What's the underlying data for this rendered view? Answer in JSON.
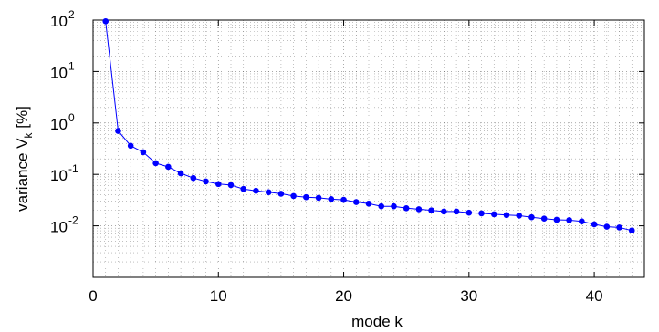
{
  "chart_data": {
    "type": "line",
    "title": "",
    "xlabel": "mode k",
    "ylabel_main": "variance V",
    "ylabel_sub": "k",
    "ylabel_unit": " [%]",
    "xlim": [
      0,
      44
    ],
    "ylim": [
      0.001,
      100
    ],
    "y_scale": "log",
    "grid": true,
    "legend": "none",
    "series_color": "#0000ff",
    "x_ticks": [
      {
        "value": 0,
        "label": "0"
      },
      {
        "value": 10,
        "label": "10"
      },
      {
        "value": 20,
        "label": "20"
      },
      {
        "value": 30,
        "label": "30"
      },
      {
        "value": 40,
        "label": "40"
      }
    ],
    "y_ticks": [
      {
        "value": 100,
        "base": "10",
        "exp": "2"
      },
      {
        "value": 10,
        "base": "10",
        "exp": "1"
      },
      {
        "value": 1,
        "base": "10",
        "exp": "0"
      },
      {
        "value": 0.1,
        "base": "10",
        "exp": "-1"
      },
      {
        "value": 0.01,
        "base": "10",
        "exp": "-2"
      }
    ],
    "x": [
      1,
      2,
      3,
      4,
      5,
      6,
      7,
      8,
      9,
      10,
      11,
      12,
      13,
      14,
      15,
      16,
      17,
      18,
      19,
      20,
      21,
      22,
      23,
      24,
      25,
      26,
      27,
      28,
      29,
      30,
      31,
      32,
      33,
      34,
      35,
      36,
      37,
      38,
      39,
      40,
      41,
      42,
      43
    ],
    "values": [
      95,
      0.7,
      0.36,
      0.27,
      0.165,
      0.14,
      0.105,
      0.085,
      0.073,
      0.065,
      0.062,
      0.052,
      0.048,
      0.045,
      0.042,
      0.038,
      0.036,
      0.035,
      0.033,
      0.032,
      0.029,
      0.027,
      0.024,
      0.024,
      0.022,
      0.021,
      0.02,
      0.019,
      0.019,
      0.018,
      0.0175,
      0.0168,
      0.0162,
      0.0158,
      0.0147,
      0.0138,
      0.0131,
      0.0129,
      0.0122,
      0.0107,
      0.0096,
      0.0093,
      0.0081
    ]
  }
}
